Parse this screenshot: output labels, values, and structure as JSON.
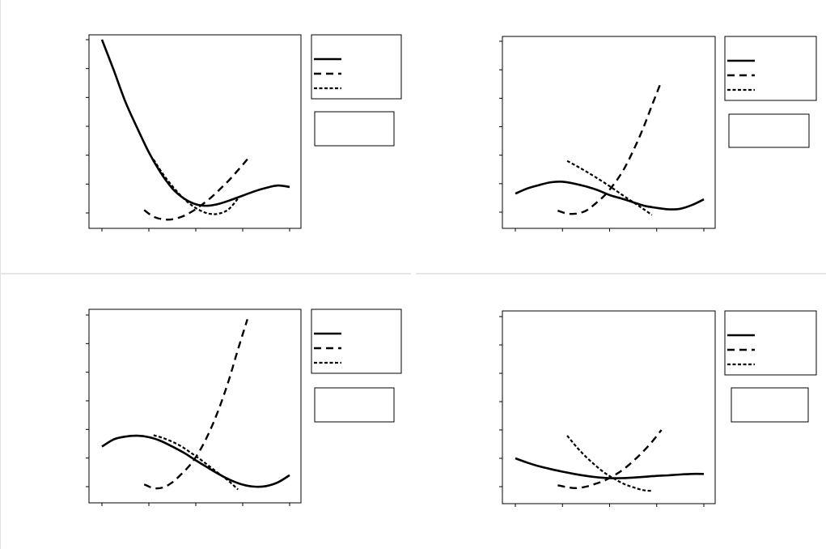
{
  "colors": {
    "background": "#ffffff",
    "line": "#000000",
    "frame": "#000000",
    "divider": "#cccccc"
  },
  "chart_data": [
    {
      "type": "line",
      "title": "",
      "xlabel": "",
      "ylabel": "",
      "xlim": [
        0,
        4
      ],
      "ylim": [
        0,
        6
      ],
      "x_ticks": [
        0,
        1,
        2,
        3,
        4
      ],
      "y_ticks": [
        0,
        1,
        2,
        3,
        4,
        5,
        6
      ],
      "x_tick_labels": [],
      "y_tick_labels": [],
      "legend": "right",
      "grid": false,
      "series": [
        {
          "style": "solid",
          "x": [
            0,
            0.25,
            0.5,
            0.75,
            1,
            1.25,
            1.5,
            1.75,
            2,
            2.25,
            2.5,
            2.75,
            3,
            3.25,
            3.5,
            3.75,
            4
          ],
          "y": [
            6.0,
            4.95,
            3.85,
            2.95,
            2.1,
            1.4,
            0.85,
            0.5,
            0.3,
            0.25,
            0.32,
            0.45,
            0.6,
            0.75,
            0.87,
            0.95,
            0.9
          ]
        },
        {
          "style": "dashed",
          "x": [
            0.9,
            1.1,
            1.3,
            1.5,
            1.7,
            1.9,
            2.1,
            2.3,
            2.5,
            2.7,
            2.9,
            3.1
          ],
          "y": [
            0.1,
            -0.13,
            -0.22,
            -0.22,
            -0.13,
            0.03,
            0.25,
            0.5,
            0.8,
            1.12,
            1.48,
            1.86
          ]
        },
        {
          "style": "dotted",
          "x": [
            1.1,
            1.3,
            1.5,
            1.7,
            1.9,
            2.1,
            2.3,
            2.5,
            2.7,
            2.9
          ],
          "y": [
            1.85,
            1.35,
            0.93,
            0.57,
            0.28,
            0.08,
            -0.03,
            -0.02,
            0.13,
            0.5
          ]
        }
      ]
    },
    {
      "type": "line",
      "title": "",
      "xlabel": "",
      "ylabel": "",
      "xlim": [
        0,
        4
      ],
      "ylim": [
        0,
        6
      ],
      "x_ticks": [
        0,
        1,
        2,
        3,
        4
      ],
      "y_ticks": [
        0,
        1,
        2,
        3,
        4,
        5,
        6
      ],
      "x_tick_labels": [],
      "y_tick_labels": [],
      "legend": "right",
      "grid": false,
      "series": [
        {
          "style": "solid",
          "x": [
            0,
            0.25,
            0.5,
            0.75,
            1,
            1.25,
            1.5,
            1.75,
            2,
            2.25,
            2.5,
            2.75,
            3,
            3.25,
            3.5,
            3.75,
            4
          ],
          "y": [
            0.65,
            0.83,
            0.95,
            1.05,
            1.07,
            1.0,
            0.9,
            0.77,
            0.6,
            0.48,
            0.35,
            0.22,
            0.15,
            0.1,
            0.12,
            0.25,
            0.45
          ]
        },
        {
          "style": "dashed",
          "x": [
            0.9,
            1.1,
            1.3,
            1.5,
            1.7,
            1.9,
            2.1,
            2.3,
            2.5,
            2.7,
            2.9,
            3.1
          ],
          "y": [
            0.05,
            -0.05,
            -0.05,
            0.05,
            0.3,
            0.6,
            1.0,
            1.5,
            2.15,
            2.9,
            3.75,
            4.6
          ]
        },
        {
          "style": "dotted",
          "x": [
            1.1,
            1.3,
            1.5,
            1.7,
            1.9,
            2.1,
            2.3,
            2.5,
            2.7,
            2.9
          ],
          "y": [
            1.8,
            1.62,
            1.43,
            1.23,
            1.02,
            0.8,
            0.57,
            0.35,
            0.13,
            -0.1
          ]
        }
      ]
    },
    {
      "type": "line",
      "title": "",
      "xlabel": "",
      "ylabel": "",
      "xlim": [
        0,
        4
      ],
      "ylim": [
        0,
        6
      ],
      "x_ticks": [
        0,
        1,
        2,
        3,
        4
      ],
      "y_ticks": [
        0,
        1,
        2,
        3,
        4,
        5,
        6
      ],
      "x_tick_labels": [],
      "y_tick_labels": [],
      "legend": "right",
      "grid": false,
      "series": [
        {
          "style": "solid",
          "x": [
            0,
            0.25,
            0.5,
            0.75,
            1,
            1.25,
            1.5,
            1.75,
            2,
            2.25,
            2.5,
            2.75,
            3,
            3.25,
            3.5,
            3.75,
            4
          ],
          "y": [
            1.4,
            1.65,
            1.75,
            1.78,
            1.73,
            1.6,
            1.4,
            1.18,
            0.92,
            0.67,
            0.43,
            0.22,
            0.07,
            0.0,
            0.02,
            0.15,
            0.4
          ]
        },
        {
          "style": "dashed",
          "x": [
            0.9,
            1.1,
            1.3,
            1.5,
            1.7,
            1.9,
            2.1,
            2.3,
            2.5,
            2.7,
            2.9,
            3.1
          ],
          "y": [
            0.08,
            -0.05,
            -0.03,
            0.15,
            0.45,
            0.8,
            1.3,
            1.95,
            2.75,
            3.7,
            4.8,
            5.85
          ]
        },
        {
          "style": "dotted",
          "x": [
            1.1,
            1.3,
            1.5,
            1.7,
            1.9,
            2.1,
            2.3,
            2.5,
            2.7,
            2.9
          ],
          "y": [
            1.8,
            1.7,
            1.57,
            1.4,
            1.18,
            0.95,
            0.7,
            0.45,
            0.2,
            -0.1
          ]
        }
      ]
    },
    {
      "type": "line",
      "title": "",
      "xlabel": "",
      "ylabel": "",
      "xlim": [
        0,
        4
      ],
      "ylim": [
        0,
        6
      ],
      "x_ticks": [
        0,
        1,
        2,
        3,
        4
      ],
      "y_ticks": [
        0,
        1,
        2,
        3,
        4,
        5,
        6
      ],
      "x_tick_labels": [],
      "y_tick_labels": [],
      "legend": "right",
      "grid": false,
      "series": [
        {
          "style": "solid",
          "x": [
            0,
            0.25,
            0.5,
            0.75,
            1,
            1.25,
            1.5,
            1.75,
            2,
            2.25,
            2.5,
            2.75,
            3,
            3.25,
            3.5,
            3.75,
            4
          ],
          "y": [
            1.0,
            0.85,
            0.72,
            0.62,
            0.53,
            0.45,
            0.38,
            0.33,
            0.3,
            0.3,
            0.32,
            0.35,
            0.38,
            0.4,
            0.43,
            0.45,
            0.45
          ]
        },
        {
          "style": "dashed",
          "x": [
            0.9,
            1.1,
            1.3,
            1.5,
            1.7,
            1.9,
            2.1,
            2.3,
            2.5,
            2.7,
            2.9,
            3.1
          ],
          "y": [
            0.05,
            -0.02,
            -0.05,
            0.0,
            0.1,
            0.22,
            0.4,
            0.62,
            0.9,
            1.22,
            1.58,
            2.0
          ]
        },
        {
          "style": "dotted",
          "x": [
            1.1,
            1.3,
            1.5,
            1.7,
            1.9,
            2.1,
            2.3,
            2.5,
            2.7,
            2.9
          ],
          "y": [
            1.8,
            1.4,
            1.05,
            0.75,
            0.48,
            0.28,
            0.1,
            -0.02,
            -0.12,
            -0.15
          ]
        }
      ]
    }
  ]
}
